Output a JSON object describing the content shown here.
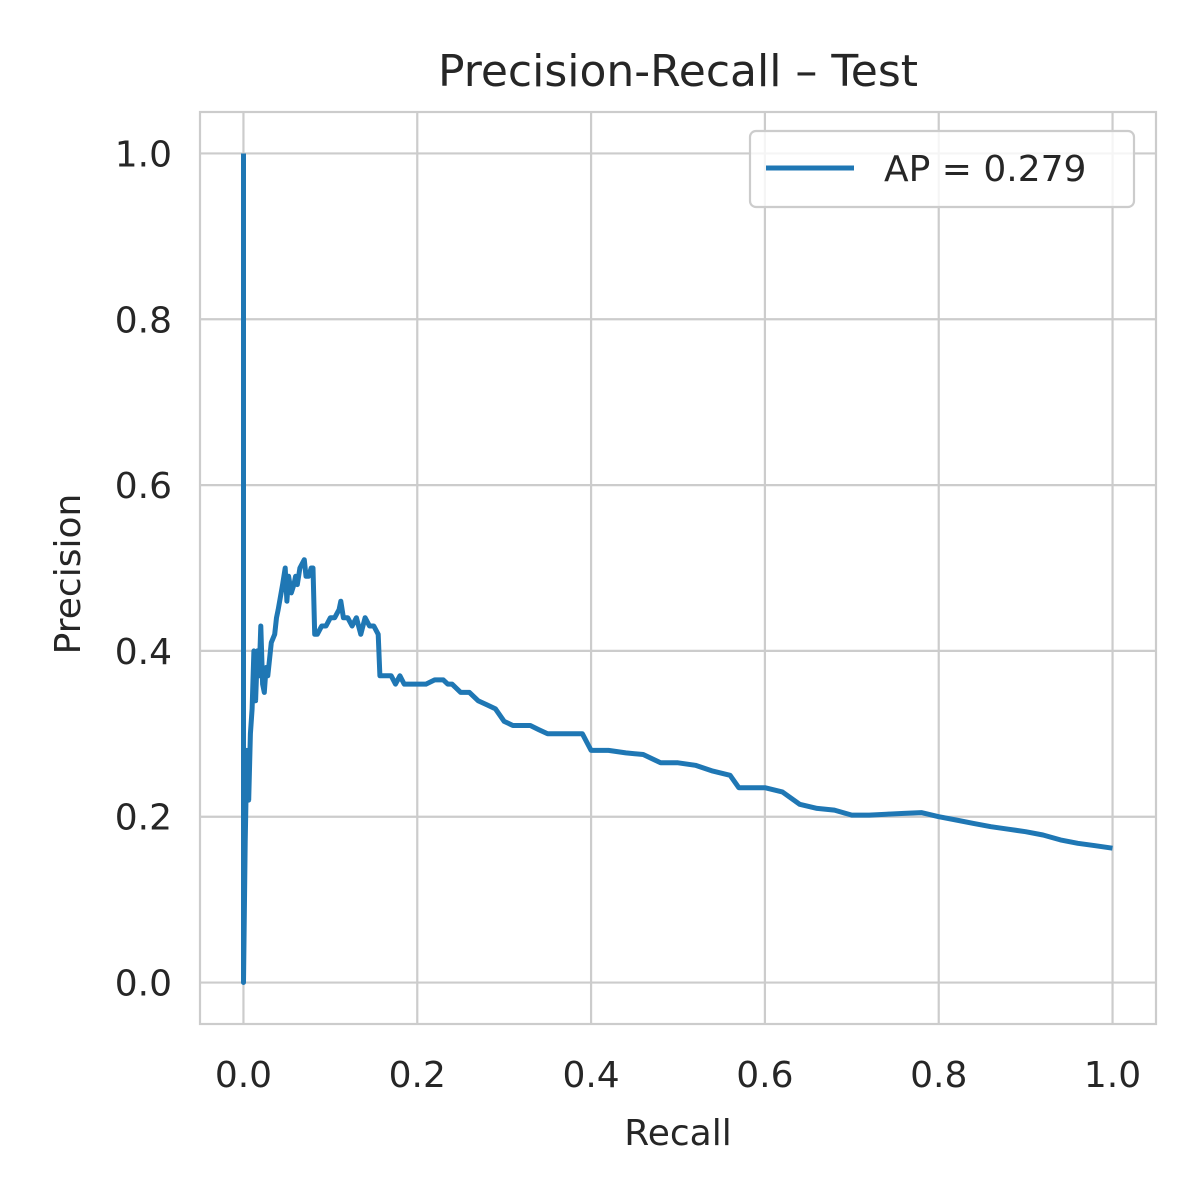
{
  "chart_data": {
    "type": "line",
    "title": "Precision-Recall – Test",
    "xlabel": "Recall",
    "ylabel": "Precision",
    "xlim": [
      -0.05,
      1.05
    ],
    "ylim": [
      -0.05,
      1.05
    ],
    "xticks": [
      0.0,
      0.2,
      0.4,
      0.6,
      0.8,
      1.0
    ],
    "xtick_labels": [
      "0.0",
      "0.2",
      "0.4",
      "0.6",
      "0.8",
      "1.0"
    ],
    "yticks": [
      0.0,
      0.2,
      0.4,
      0.6,
      0.8,
      1.0
    ],
    "ytick_labels": [
      "0.0",
      "0.2",
      "0.4",
      "0.6",
      "0.8",
      "1.0"
    ],
    "grid": true,
    "legend_position": "top-right",
    "series": [
      {
        "name": "AP = 0.279",
        "color": "#1f77b4",
        "points": [
          [
            0.0,
            1.0
          ],
          [
            0.0,
            0.0
          ],
          [
            0.002,
            0.17
          ],
          [
            0.004,
            0.28
          ],
          [
            0.006,
            0.22
          ],
          [
            0.008,
            0.3
          ],
          [
            0.01,
            0.33
          ],
          [
            0.012,
            0.4
          ],
          [
            0.014,
            0.34
          ],
          [
            0.016,
            0.4
          ],
          [
            0.018,
            0.37
          ],
          [
            0.02,
            0.43
          ],
          [
            0.022,
            0.36
          ],
          [
            0.024,
            0.35
          ],
          [
            0.026,
            0.38
          ],
          [
            0.028,
            0.37
          ],
          [
            0.032,
            0.41
          ],
          [
            0.036,
            0.42
          ],
          [
            0.038,
            0.44
          ],
          [
            0.04,
            0.45
          ],
          [
            0.045,
            0.48
          ],
          [
            0.048,
            0.5
          ],
          [
            0.05,
            0.46
          ],
          [
            0.052,
            0.49
          ],
          [
            0.055,
            0.47
          ],
          [
            0.058,
            0.48
          ],
          [
            0.06,
            0.49
          ],
          [
            0.062,
            0.48
          ],
          [
            0.065,
            0.5
          ],
          [
            0.07,
            0.51
          ],
          [
            0.072,
            0.49
          ],
          [
            0.075,
            0.49
          ],
          [
            0.078,
            0.5
          ],
          [
            0.08,
            0.5
          ],
          [
            0.082,
            0.42
          ],
          [
            0.085,
            0.42
          ],
          [
            0.09,
            0.43
          ],
          [
            0.095,
            0.43
          ],
          [
            0.1,
            0.44
          ],
          [
            0.105,
            0.44
          ],
          [
            0.11,
            0.45
          ],
          [
            0.112,
            0.46
          ],
          [
            0.115,
            0.44
          ],
          [
            0.12,
            0.44
          ],
          [
            0.125,
            0.43
          ],
          [
            0.13,
            0.44
          ],
          [
            0.135,
            0.42
          ],
          [
            0.14,
            0.44
          ],
          [
            0.145,
            0.43
          ],
          [
            0.15,
            0.43
          ],
          [
            0.155,
            0.42
          ],
          [
            0.157,
            0.37
          ],
          [
            0.16,
            0.37
          ],
          [
            0.165,
            0.37
          ],
          [
            0.17,
            0.37
          ],
          [
            0.175,
            0.36
          ],
          [
            0.18,
            0.37
          ],
          [
            0.185,
            0.36
          ],
          [
            0.19,
            0.36
          ],
          [
            0.2,
            0.36
          ],
          [
            0.21,
            0.36
          ],
          [
            0.22,
            0.365
          ],
          [
            0.23,
            0.365
          ],
          [
            0.235,
            0.36
          ],
          [
            0.24,
            0.36
          ],
          [
            0.25,
            0.35
          ],
          [
            0.26,
            0.35
          ],
          [
            0.27,
            0.34
          ],
          [
            0.28,
            0.335
          ],
          [
            0.29,
            0.33
          ],
          [
            0.3,
            0.315
          ],
          [
            0.31,
            0.31
          ],
          [
            0.32,
            0.31
          ],
          [
            0.33,
            0.31
          ],
          [
            0.34,
            0.305
          ],
          [
            0.35,
            0.3
          ],
          [
            0.36,
            0.3
          ],
          [
            0.38,
            0.3
          ],
          [
            0.39,
            0.3
          ],
          [
            0.4,
            0.28
          ],
          [
            0.42,
            0.28
          ],
          [
            0.44,
            0.277
          ],
          [
            0.46,
            0.275
          ],
          [
            0.48,
            0.265
          ],
          [
            0.5,
            0.265
          ],
          [
            0.52,
            0.262
          ],
          [
            0.54,
            0.255
          ],
          [
            0.56,
            0.25
          ],
          [
            0.57,
            0.235
          ],
          [
            0.58,
            0.235
          ],
          [
            0.6,
            0.235
          ],
          [
            0.62,
            0.23
          ],
          [
            0.64,
            0.215
          ],
          [
            0.66,
            0.21
          ],
          [
            0.68,
            0.208
          ],
          [
            0.7,
            0.202
          ],
          [
            0.72,
            0.202
          ],
          [
            0.74,
            0.203
          ],
          [
            0.76,
            0.204
          ],
          [
            0.78,
            0.205
          ],
          [
            0.8,
            0.2
          ],
          [
            0.82,
            0.196
          ],
          [
            0.84,
            0.192
          ],
          [
            0.86,
            0.188
          ],
          [
            0.88,
            0.185
          ],
          [
            0.9,
            0.182
          ],
          [
            0.92,
            0.178
          ],
          [
            0.94,
            0.172
          ],
          [
            0.96,
            0.168
          ],
          [
            0.98,
            0.165
          ],
          [
            1.0,
            0.162
          ]
        ]
      }
    ]
  }
}
